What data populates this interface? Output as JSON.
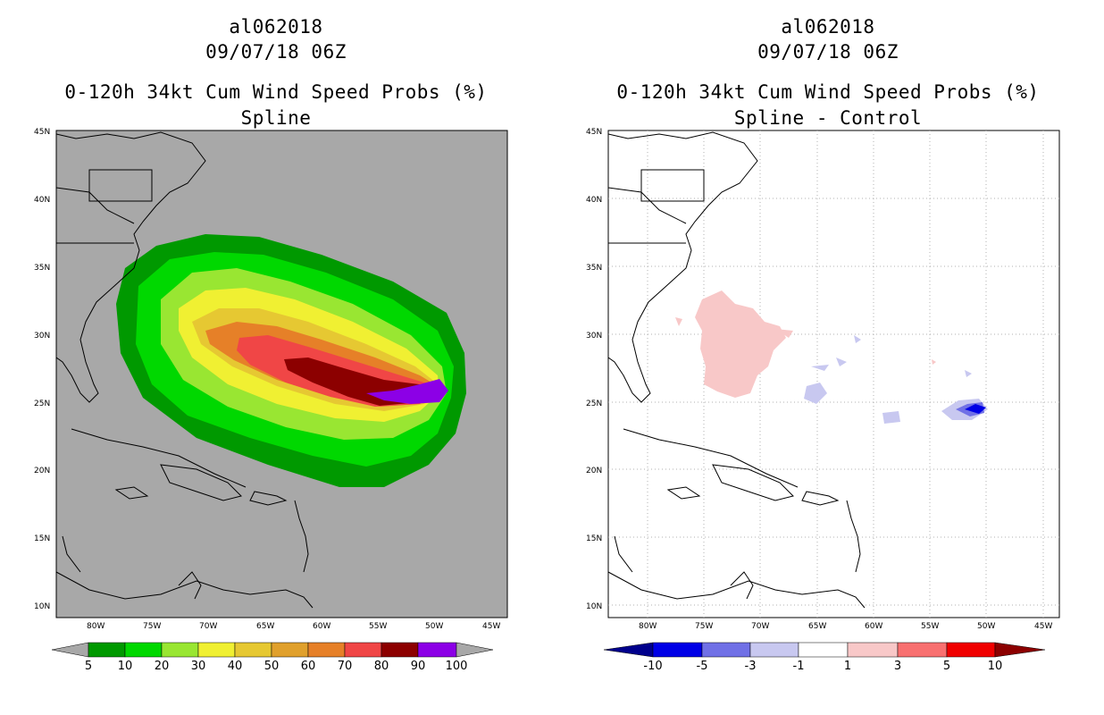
{
  "panels": [
    {
      "id": "spline",
      "title": {
        "storm_id": "al062018",
        "datetime": "09/07/18 06Z",
        "product": "0-120h 34kt Cum Wind Speed Probs (%)",
        "subtitle": "Spline"
      },
      "background": "#a8a8a8",
      "colorbar": {
        "levels": [
          "5",
          "10",
          "20",
          "30",
          "40",
          "50",
          "60",
          "70",
          "80",
          "90",
          "100"
        ],
        "colors": [
          "#009900",
          "#00d800",
          "#99e632",
          "#f0f032",
          "#e6c832",
          "#e0a02c",
          "#e68028",
          "#f04646",
          "#8c0000",
          "#8c00e6"
        ],
        "end_left": "#a8a8a8",
        "end_right": "#a8a8a8"
      }
    },
    {
      "id": "diff",
      "title": {
        "storm_id": "al062018",
        "datetime": "09/07/18 06Z",
        "product": "0-120h 34kt Cum Wind Speed Probs (%)",
        "subtitle": "Spline - Control"
      },
      "background": "#ffffff",
      "colorbar": {
        "levels": [
          "-10",
          "-5",
          "-3",
          "-1",
          "1",
          "3",
          "5",
          "10"
        ],
        "colors": [
          "#0000e6",
          "#7070e6",
          "#c8c8f0",
          "#ffffff",
          "#f8c8c8",
          "#f87070",
          "#f00000"
        ],
        "end_left": "#00008c",
        "end_right": "#8c0000"
      }
    }
  ],
  "map_axes": {
    "lat_labels": [
      "45N",
      "40N",
      "35N",
      "30N",
      "25N",
      "20N",
      "15N",
      "10N"
    ],
    "lon_labels": [
      "80W",
      "75W",
      "70W",
      "65W",
      "60W",
      "55W",
      "50W",
      "45W"
    ],
    "lon_range": [
      -84,
      -44
    ],
    "lat_range": [
      9.5,
      45
    ]
  },
  "colors": {
    "land_outline": "#000000",
    "grid": "#b0b0b0"
  }
}
